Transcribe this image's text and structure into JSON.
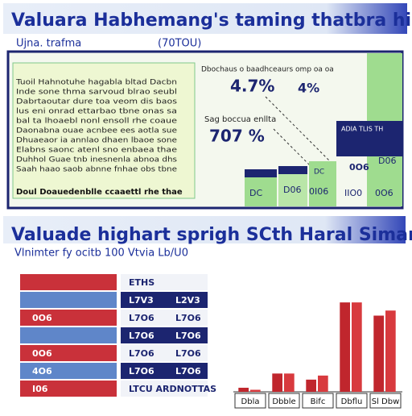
{
  "header": {
    "title": "Valuara Habhemang's taming thatbra hirel",
    "subtitle": "Ujna. trafma",
    "code": "(70TOU)"
  },
  "panel": {
    "paragraph": [
      "Tuoil Hahnotuhe hagabla bltad Dacbn",
      "Inde sone thma sarvoud blrao seubl",
      "Dabrtaoutar dure toa veom dis baos",
      "lus eni onrad ettarbao tbne onas sa",
      "bal ta lhoaebl nonl ensoll rhe coaue",
      "Daonabna ouae acnbee ees aotla sue",
      "Dhuaeaor ia annlao dhaen lbaoe sone",
      "Elabns saonc atenl sno enbaea thae",
      "Duhhol Guae tnb inesnenla abnoa dhs",
      "Saah haao saob abnne fnhae obs tbne"
    ],
    "footer": "Doul Doauedenblle ccaaettl rhe thae",
    "stats": {
      "heading": "Dbochaus o baadhceaurs omp oa oa",
      "stat1": "4.7%",
      "stat2": "4%",
      "label2": "Sag boccua enllta",
      "stat3": "707 %",
      "box1": "ADIA TLIS TH",
      "box2": "0O6",
      "box3": "DC",
      "box4": "DC",
      "box5": "D06",
      "box6": "0I06",
      "box7": "IIO0",
      "box8": "0O6",
      "box9": "D06"
    }
  },
  "section": {
    "title": "Valuade highart sprigh SCth Haral Simar",
    "subtitle": "Vlnimter fy ocitb  100  Vtvia Lb/U0"
  },
  "table": {
    "rows": [
      [
        "",
        "ETHS",
        ""
      ],
      [
        "",
        "L7V3",
        "L2V3"
      ],
      [
        "0O6",
        "L7O6",
        "L7O6"
      ],
      [
        "",
        "L7O6",
        "L7O6"
      ],
      [
        "0O6",
        "L7O6",
        "L7O6"
      ],
      [
        "4O6",
        "L7O6",
        "L7O6"
      ],
      [
        "I06",
        "LTCU ARDNOTTAS",
        ""
      ]
    ]
  },
  "chart_data": {
    "type": "bar",
    "categories": [
      "Dbla",
      "Dbble",
      "Bifc",
      "Dbflu",
      "Sl Dbw"
    ],
    "series": [
      {
        "name": "A",
        "color": "#c0262d",
        "values": [
          4,
          18,
          12,
          88,
          75
        ]
      },
      {
        "name": "B",
        "color": "#d83a3e",
        "values": [
          2,
          18,
          16,
          88,
          80
        ]
      }
    ],
    "ylim": [
      0,
      100
    ]
  }
}
